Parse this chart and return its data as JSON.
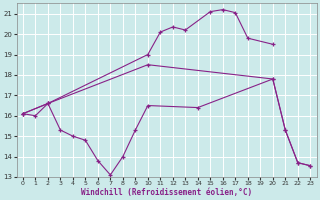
{
  "xlabel": "Windchill (Refroidissement éolien,°C)",
  "background_color": "#cceaea",
  "line_color": "#882288",
  "grid_color": "#ffffff",
  "xlim": [
    -0.5,
    23.5
  ],
  "ylim": [
    13,
    21.5
  ],
  "yticks": [
    13,
    14,
    15,
    16,
    17,
    18,
    19,
    20,
    21
  ],
  "xticks": [
    0,
    1,
    2,
    3,
    4,
    5,
    6,
    7,
    8,
    9,
    10,
    11,
    12,
    13,
    14,
    15,
    16,
    17,
    18,
    19,
    20,
    21,
    22,
    23
  ],
  "line1_x": [
    0,
    1,
    2,
    10,
    11,
    12,
    13,
    15,
    16,
    17,
    18,
    20
  ],
  "line1_y": [
    16.1,
    16.0,
    16.6,
    19.0,
    20.1,
    20.35,
    20.2,
    21.1,
    21.2,
    21.05,
    19.8,
    19.5
  ],
  "line2_x": [
    0,
    2,
    3,
    4,
    5,
    6,
    7,
    8,
    9,
    10,
    14,
    20,
    21,
    22,
    23
  ],
  "line2_y": [
    16.1,
    16.6,
    15.3,
    15.0,
    14.8,
    13.8,
    13.1,
    14.0,
    15.3,
    16.5,
    16.4,
    17.8,
    15.3,
    13.7,
    13.55
  ],
  "line3_x": [
    0,
    2,
    10,
    20,
    21,
    22,
    23
  ],
  "line3_y": [
    16.1,
    16.6,
    18.5,
    17.8,
    15.3,
    13.7,
    13.55
  ]
}
